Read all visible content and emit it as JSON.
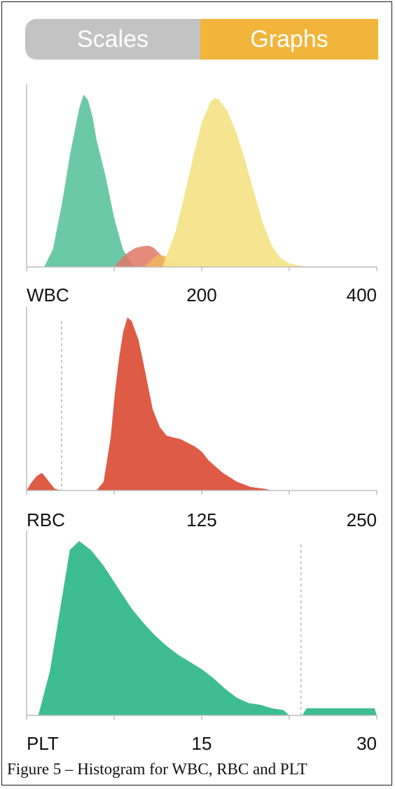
{
  "toggle": {
    "scales_label": "Scales",
    "graphs_label": "Graphs",
    "active": "Graphs"
  },
  "caption": "Figure 5 – Histogram for WBC, RBC and PLT",
  "colors": {
    "wbc_green": "#6cc9a7",
    "wbc_yellow": "#f6e48a",
    "wbc_red": "#e07766",
    "wbc_orange": "#f0b65c",
    "rbc": "#de5b45",
    "plt": "#3fbd92",
    "toggle_gray": "#c3c3c3",
    "toggle_orange": "#f2b53c"
  },
  "chart_data": [
    {
      "type": "area",
      "name_label": "WBC",
      "tick_labels": [
        "200",
        "400"
      ],
      "xlim": [
        0,
        400
      ],
      "ylim": [
        0,
        100
      ],
      "grid": false,
      "series": [
        {
          "color": "green",
          "x": [
            20,
            30,
            40,
            50,
            60,
            65,
            70,
            75,
            80,
            90,
            100,
            110,
            120,
            125
          ],
          "y": [
            0,
            10,
            35,
            65,
            90,
            98,
            95,
            86,
            72,
            52,
            28,
            10,
            2,
            0
          ]
        },
        {
          "color": "red",
          "x": [
            100,
            105,
            115,
            125,
            135,
            140,
            145,
            155,
            165
          ],
          "y": [
            0,
            3,
            8,
            11,
            12,
            12,
            11,
            6,
            0
          ]
        },
        {
          "color": "orange",
          "x": [
            135,
            140,
            150,
            160,
            170,
            175
          ],
          "y": [
            0,
            3,
            7,
            6,
            2,
            0
          ]
        },
        {
          "color": "yellow",
          "x": [
            155,
            170,
            180,
            190,
            200,
            210,
            215,
            220,
            230,
            240,
            250,
            260,
            270,
            280,
            290,
            300,
            310,
            320
          ],
          "y": [
            0,
            20,
            40,
            62,
            82,
            94,
            96,
            95,
            88,
            76,
            60,
            42,
            25,
            12,
            5,
            2,
            1,
            0
          ]
        }
      ]
    },
    {
      "type": "area",
      "name_label": "RBC",
      "tick_labels": [
        "125",
        "250"
      ],
      "xlim": [
        0,
        250
      ],
      "ylim": [
        0,
        100
      ],
      "grid": false,
      "threshold": 25,
      "series": [
        {
          "color": "rbc",
          "x": [
            0,
            3,
            7,
            11,
            15,
            20,
            25,
            50,
            55,
            60,
            63,
            66,
            69,
            72,
            75,
            80,
            85,
            90,
            95,
            100,
            110,
            115,
            120,
            125,
            130,
            140,
            150,
            160,
            170,
            175
          ],
          "y": [
            0,
            4,
            8,
            10,
            6,
            1,
            0,
            0,
            5,
            30,
            55,
            75,
            90,
            98,
            96,
            85,
            66,
            46,
            36,
            31,
            29,
            27,
            25,
            22,
            17,
            10,
            5,
            2,
            1,
            0
          ]
        }
      ]
    },
    {
      "type": "area",
      "name_label": "PLT",
      "tick_labels": [
        "15",
        "30"
      ],
      "xlim": [
        0,
        30
      ],
      "ylim": [
        0,
        100
      ],
      "grid": false,
      "threshold": 23.5,
      "series": [
        {
          "color": "plt",
          "x": [
            1.0,
            2.0,
            3.0,
            3.7,
            4.5,
            5.5,
            6.5,
            7.0,
            8.0,
            9.0,
            10.0,
            11.0,
            12.0,
            13.0,
            14.0,
            15.0,
            16.0,
            17.0,
            18.0,
            19.0,
            20.0,
            21.0,
            22.0,
            22.5
          ],
          "y": [
            0,
            25,
            65,
            93,
            98,
            93,
            85,
            80,
            70,
            60,
            52,
            45,
            39,
            34,
            30,
            26,
            21,
            15,
            10,
            7,
            6,
            4,
            3,
            0
          ]
        },
        {
          "color": "plt",
          "x": [
            23.6,
            24,
            29.8,
            30
          ],
          "y": [
            0,
            4,
            4,
            0
          ]
        }
      ]
    }
  ]
}
